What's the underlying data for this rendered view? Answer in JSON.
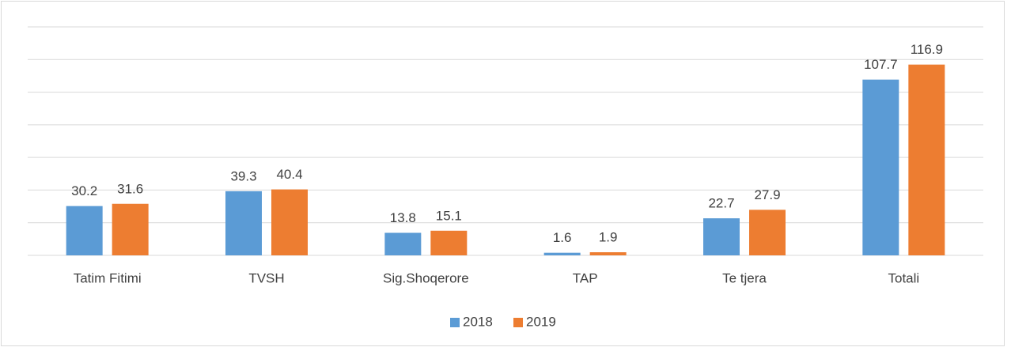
{
  "chart_data": {
    "type": "bar",
    "categories": [
      "Tatim Fitimi",
      "TVSH",
      "Sig.Shoqerore",
      "TAP",
      "Te tjera",
      "Totali"
    ],
    "series": [
      {
        "name": "2018",
        "color": "#5b9bd5",
        "values": [
          30.2,
          39.3,
          13.8,
          1.6,
          22.7,
          107.7
        ]
      },
      {
        "name": "2019",
        "color": "#ed7d31",
        "values": [
          31.6,
          40.4,
          15.1,
          1.9,
          27.9,
          116.9
        ]
      }
    ],
    "ylim": [
      0,
      140
    ],
    "yticks": [
      0,
      20,
      40,
      60,
      80,
      100,
      120,
      140
    ],
    "grid": true,
    "legend": "bottom"
  }
}
